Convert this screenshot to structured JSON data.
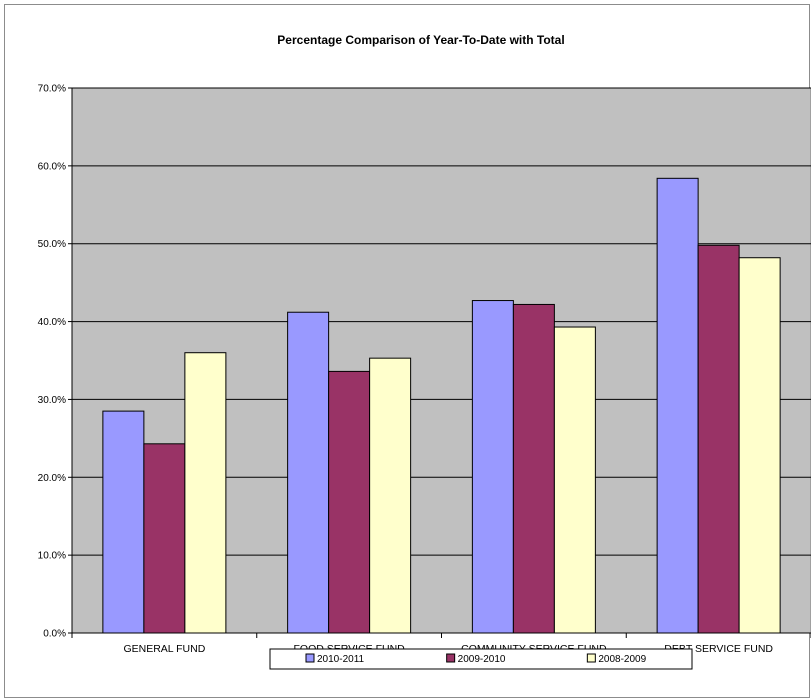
{
  "chart_data": {
    "type": "bar",
    "title": "Percentage Comparison of Year-To-Date with Total",
    "xlabel": "",
    "ylabel": "",
    "categories": [
      "GENERAL FUND",
      "FOOD SERVICE FUND",
      "COMMUNITY SERVICE FUND",
      "DEBT SERVICE FUND"
    ],
    "series": [
      {
        "name": "2010-2011",
        "color": "#9999ff",
        "values": [
          28.5,
          41.2,
          42.7,
          58.4
        ]
      },
      {
        "name": "2009-2010",
        "color": "#993366",
        "values": [
          24.3,
          33.6,
          42.2,
          49.8
        ]
      },
      {
        "name": "2008-2009",
        "color": "#ffffcc",
        "values": [
          36.0,
          35.3,
          39.3,
          48.2
        ]
      }
    ],
    "ylim": [
      0,
      70
    ],
    "yticks": [
      0,
      10,
      20,
      30,
      40,
      50,
      60,
      70
    ],
    "ytick_labels": [
      "0.0%",
      "10.0%",
      "20.0%",
      "30.0%",
      "40.0%",
      "50.0%",
      "60.0%",
      "70.0%"
    ],
    "grid": true,
    "plot_background": "#c0c0c0",
    "legend_position": "bottom"
  }
}
